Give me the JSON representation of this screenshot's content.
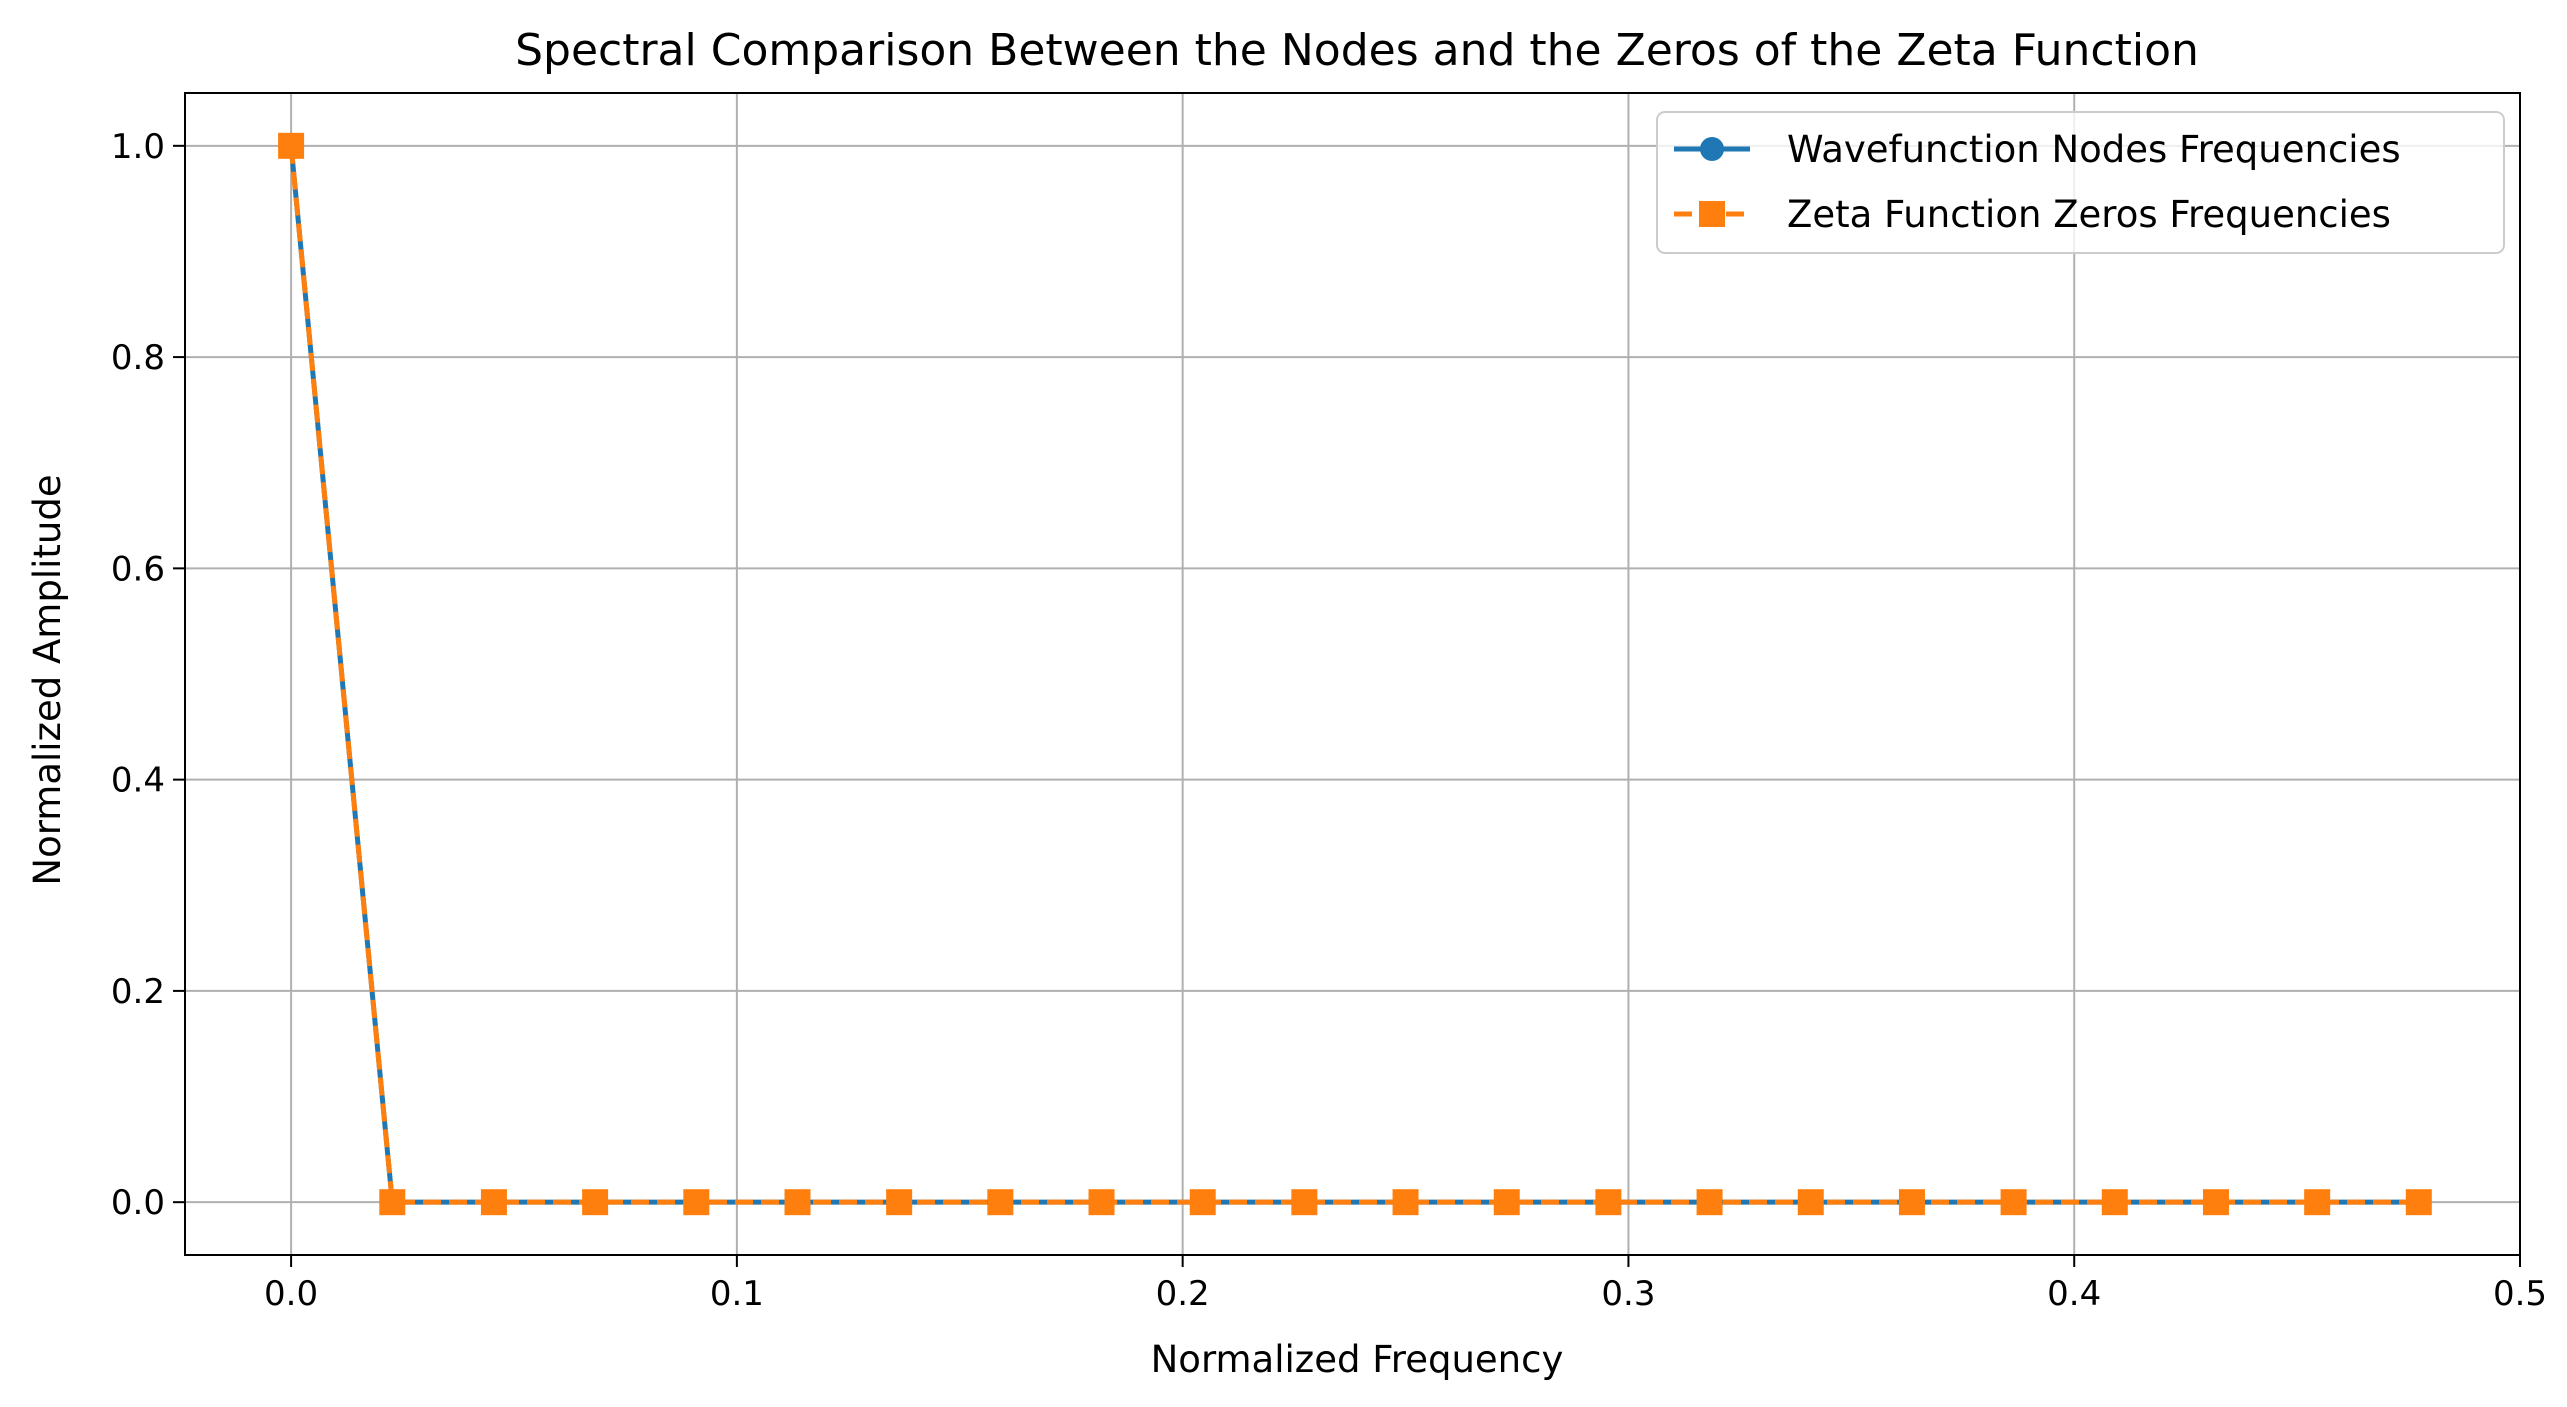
{
  "chart_data": {
    "type": "line",
    "title": "Spectral Comparison Between the Nodes and the Zeros of the Zeta Function",
    "xlabel": "Normalized Frequency",
    "ylabel": "Normalized Amplitude",
    "xlim": [
      -0.0238,
      0.5
    ],
    "ylim": [
      -0.05,
      1.05
    ],
    "xticks": [
      0.0,
      0.1,
      0.2,
      0.3,
      0.4,
      0.5
    ],
    "xtick_labels": [
      "0.0",
      "0.1",
      "0.2",
      "0.3",
      "0.4",
      "0.5"
    ],
    "yticks": [
      0.0,
      0.2,
      0.4,
      0.6,
      0.8,
      1.0
    ],
    "ytick_labels": [
      "0.0",
      "0.2",
      "0.4",
      "0.6",
      "0.8",
      "1.0"
    ],
    "grid": true,
    "legend_position": "top-right",
    "x": [
      0.0,
      0.0227,
      0.0455,
      0.0682,
      0.0909,
      0.1136,
      0.1364,
      0.1591,
      0.1818,
      0.2045,
      0.2273,
      0.25,
      0.2727,
      0.2955,
      0.3182,
      0.3409,
      0.3636,
      0.3864,
      0.4091,
      0.4318,
      0.4545,
      0.4773
    ],
    "series": [
      {
        "name": "Wavefunction Nodes Frequencies",
        "color": "#1f77b4",
        "linestyle": "solid",
        "marker": "circle",
        "values": [
          1.0,
          0.0,
          0.0,
          0.0,
          0.0,
          0.0,
          0.0,
          0.0,
          0.0,
          0.0,
          0.0,
          0.0,
          0.0,
          0.0,
          0.0,
          0.0,
          0.0,
          0.0,
          0.0,
          0.0,
          0.0,
          0.0
        ]
      },
      {
        "name": "Zeta Function Zeros Frequencies",
        "color": "#ff7f0e",
        "linestyle": "dashed",
        "marker": "square",
        "values": [
          1.0,
          0.0,
          0.0,
          0.0,
          0.0,
          0.0,
          0.0,
          0.0,
          0.0,
          0.0,
          0.0,
          0.0,
          0.0,
          0.0,
          0.0,
          0.0,
          0.0,
          0.0,
          0.0,
          0.0,
          0.0,
          0.0
        ]
      }
    ]
  }
}
